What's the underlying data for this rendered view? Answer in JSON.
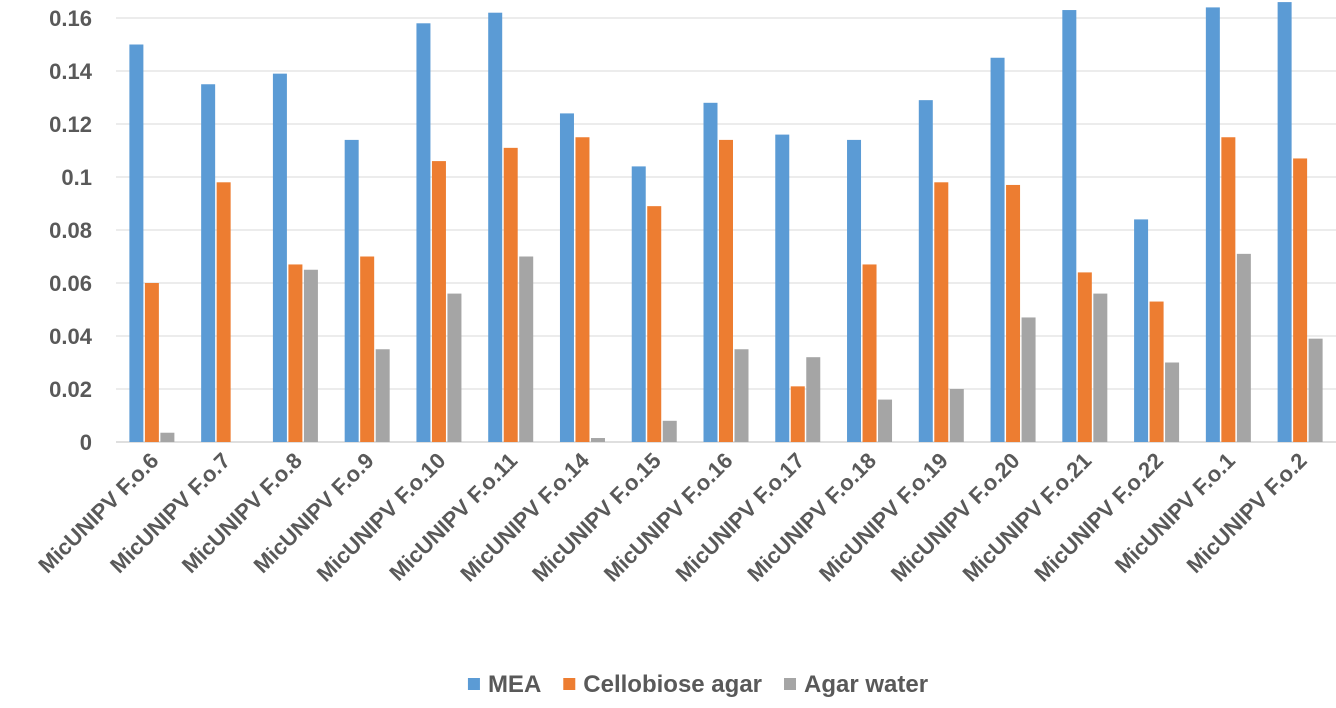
{
  "chart_data": {
    "type": "bar",
    "categories": [
      "MicUNIPV F.o.6",
      "MicUNIPV F.o.7",
      "MicUNIPV F.o.8",
      "MicUNIPV F.o.9",
      "MicUNIPV F.o.10",
      "MicUNIPV F.o.11",
      "MicUNIPV F.o.14",
      "MicUNIPV F.o.15",
      "MicUNIPV F.o.16",
      "MicUNIPV F.o.17",
      "MicUNIPV F.o.18",
      "MicUNIPV F.o.19",
      "MicUNIPV F.o.20",
      "MicUNIPV F.o.21",
      "MicUNIPV F.o.22",
      "MicUNIPV F.o.1",
      "MicUNIPV F.o.2"
    ],
    "series": [
      {
        "name": "MEA",
        "color": "#5b9bd5",
        "values": [
          0.15,
          0.135,
          0.139,
          0.114,
          0.158,
          0.162,
          0.124,
          0.104,
          0.128,
          0.116,
          0.114,
          0.129,
          0.145,
          0.163,
          0.084,
          0.164,
          0.166
        ]
      },
      {
        "name": "Cellobiose agar",
        "color": "#ed7d31",
        "values": [
          0.06,
          0.098,
          0.067,
          0.07,
          0.106,
          0.111,
          0.115,
          0.089,
          0.114,
          0.021,
          0.067,
          0.098,
          0.097,
          0.064,
          0.053,
          0.115,
          0.107
        ]
      },
      {
        "name": "Agar water",
        "color": "#a5a5a5",
        "values": [
          0.0035,
          0.0,
          0.065,
          0.035,
          0.056,
          0.07,
          0.0015,
          0.008,
          0.035,
          0.032,
          0.016,
          0.02,
          0.047,
          0.056,
          0.03,
          0.071,
          0.039
        ]
      }
    ],
    "yticks": [
      "0",
      "0.02",
      "0.04",
      "0.06",
      "0.08",
      "0.1",
      "0.12",
      "0.14",
      "0.16"
    ],
    "ylim": [
      0,
      0.16
    ],
    "grid": true,
    "legend": "bottom"
  }
}
